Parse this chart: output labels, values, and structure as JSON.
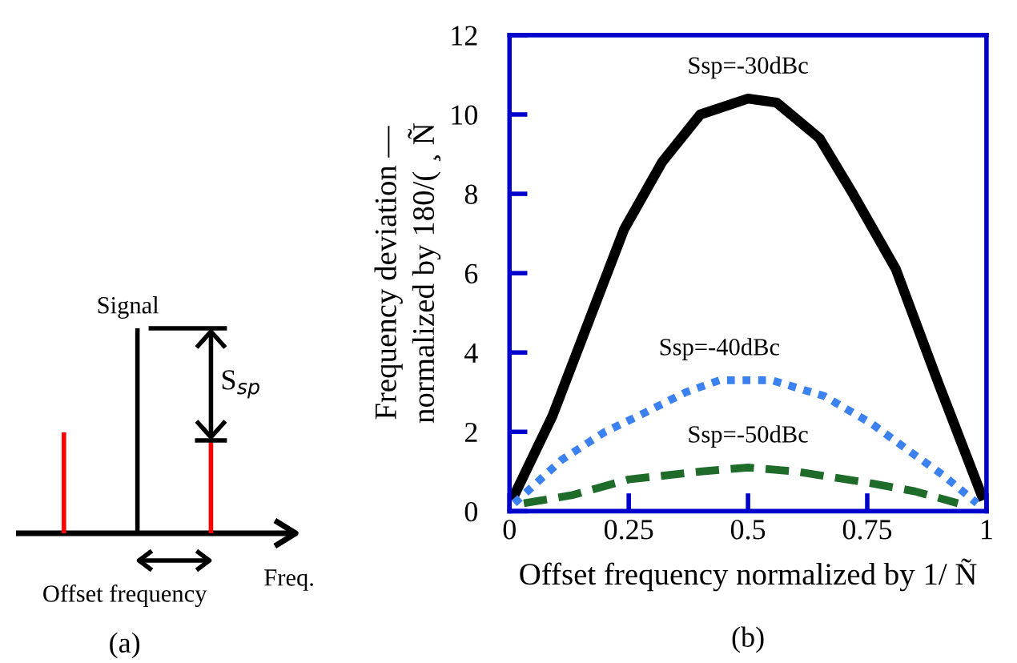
{
  "chart_data": [
    {
      "type": "other",
      "annotations": [
        "Signal",
        "S$_{sp}$",
        "Freq.",
        "Offset frequency",
        "(a)"
      ]
    },
    {
      "type": "line",
      "xlabel": "Offset frequency normalized by 1/ Ñ",
      "ylabel": "Frequency deviation ―\nnormalized by 180/( ¸ Ñ",
      "xlim": [
        0,
        1
      ],
      "ylim": [
        0,
        12
      ],
      "xticks": [
        0,
        0.25,
        0.5,
        0.75,
        1
      ],
      "yticks": [
        0,
        2,
        4,
        6,
        8,
        10,
        12
      ],
      "grid": false,
      "legend": false,
      "annotations": [
        "(b)"
      ],
      "series": [
        {
          "name": "Ssp=-30dBc",
          "color": "#000000",
          "line_style": "solid",
          "x": [
            0.01,
            0.09,
            0.24,
            0.32,
            0.4,
            0.5,
            0.56,
            0.65,
            0.72,
            0.81,
            0.9,
            0.99
          ],
          "values": [
            0.4,
            2.4,
            7.1,
            8.8,
            10.0,
            10.4,
            10.3,
            9.4,
            8.0,
            6.1,
            3.2,
            0.4
          ]
        },
        {
          "name": "Ssp=-40dBc",
          "color": "#3b82f0",
          "line_style": "dotted",
          "x": [
            0.01,
            0.11,
            0.2,
            0.27,
            0.37,
            0.44,
            0.55,
            0.66,
            0.76,
            0.84,
            0.91,
            0.98
          ],
          "values": [
            0.2,
            1.3,
            2.0,
            2.4,
            3.0,
            3.3,
            3.3,
            2.9,
            2.2,
            1.5,
            0.9,
            0.2
          ]
        },
        {
          "name": "Ssp=-50dBc",
          "color": "#1f6b2a",
          "line_style": "dashed",
          "x": [
            0.03,
            0.13,
            0.25,
            0.4,
            0.5,
            0.6,
            0.76,
            0.85,
            0.94
          ],
          "values": [
            0.2,
            0.4,
            0.8,
            1.0,
            1.1,
            1.0,
            0.7,
            0.5,
            0.2
          ]
        }
      ]
    }
  ]
}
